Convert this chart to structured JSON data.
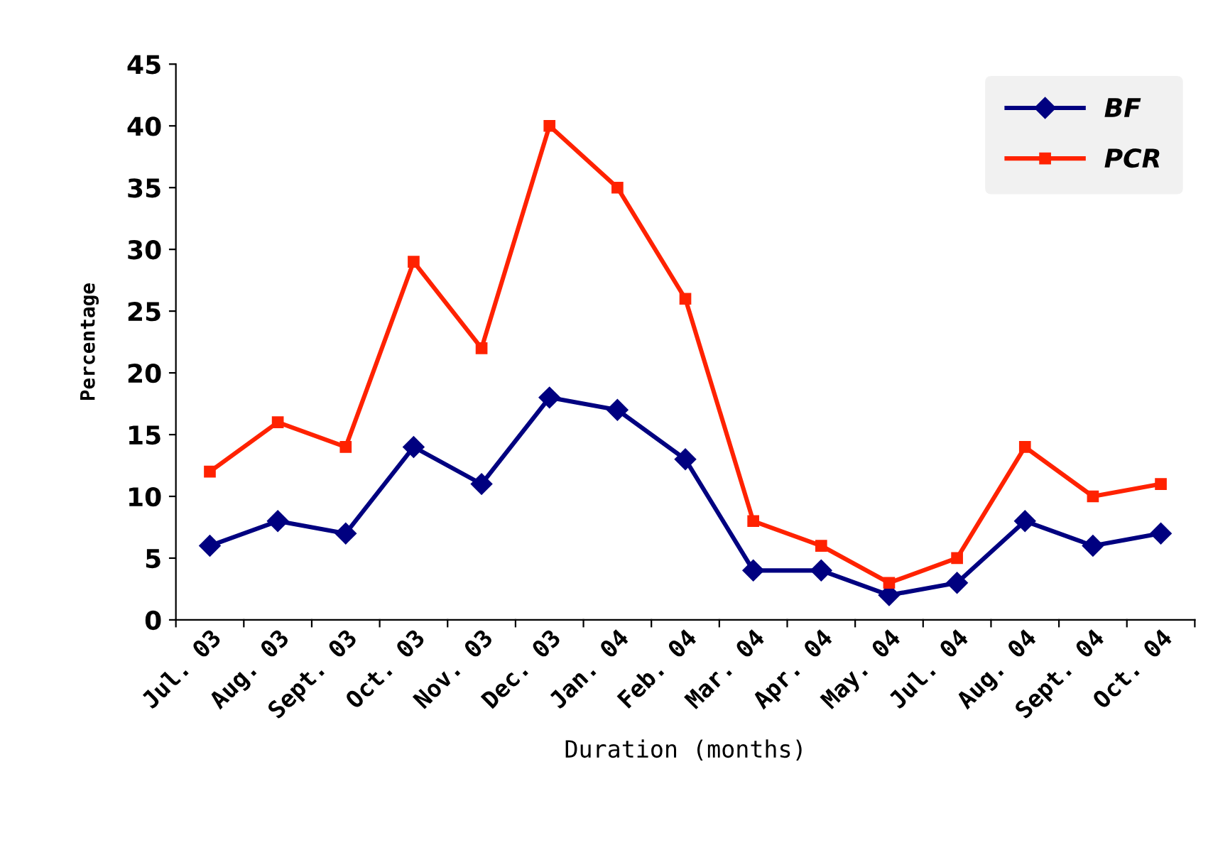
{
  "chart_data": {
    "type": "line",
    "xlabel": "Duration (months)",
    "ylabel": "Percentage",
    "categories": [
      "Jul. 03",
      "Aug. 03",
      "Sept. 03",
      "Oct. 03",
      "Nov. 03",
      "Dec. 03",
      "Jan. 04",
      "Feb. 04",
      "Mar. 04",
      "Apr. 04",
      "May. 04",
      "Jul. 04",
      "Aug. 04",
      "Sept. 04",
      "Oct. 04"
    ],
    "series": [
      {
        "name": "BF",
        "color": "#000080",
        "marker": "diamond",
        "values": [
          6,
          8,
          7,
          14,
          11,
          18,
          17,
          13,
          4,
          4,
          2,
          3,
          8,
          6,
          7
        ]
      },
      {
        "name": "PCR",
        "color": "#ff2200",
        "marker": "square",
        "values": [
          12,
          16,
          14,
          29,
          22,
          40,
          35,
          26,
          8,
          6,
          3,
          5,
          14,
          10,
          11
        ]
      }
    ],
    "ylim": [
      0,
      45
    ],
    "yticks": [
      0,
      5,
      10,
      15,
      20,
      25,
      30,
      35,
      40,
      45
    ],
    "grid": false,
    "legend": "top right"
  }
}
